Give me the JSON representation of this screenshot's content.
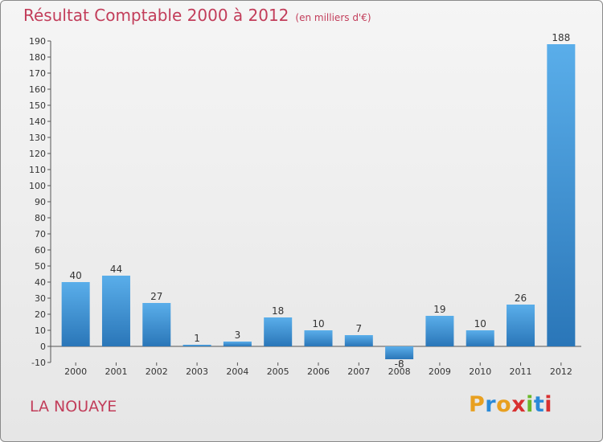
{
  "header": {
    "title": "Résultat Comptable 2000 à 2012",
    "subtitle": "(en milliers d'€)"
  },
  "footer": {
    "commune": "LA NOUAYE",
    "brand_letters": [
      "P",
      "r",
      "o",
      "x",
      "i",
      "t",
      "i"
    ]
  },
  "colors": {
    "title": "#c23d5a",
    "bar_light": "#5aaeea",
    "bar_dark": "#2a76b8",
    "brand": [
      "#e8a020",
      "#2a8ad8",
      "#e8a020",
      "#d83030",
      "#6ab82a",
      "#2a8ad8",
      "#d83030"
    ]
  },
  "chart_data": {
    "type": "bar",
    "title": "Résultat Comptable 2000 à 2012",
    "xlabel": "",
    "ylabel": "",
    "categories": [
      "2000",
      "2001",
      "2002",
      "2003",
      "2004",
      "2005",
      "2006",
      "2007",
      "2008",
      "2009",
      "2010",
      "2011",
      "2012"
    ],
    "values": [
      40,
      44,
      27,
      1,
      3,
      18,
      10,
      7,
      -8,
      19,
      10,
      26,
      188
    ],
    "ylim": [
      -10,
      190
    ],
    "yticks": [
      -10,
      0,
      10,
      20,
      30,
      40,
      50,
      60,
      70,
      80,
      90,
      100,
      110,
      120,
      130,
      140,
      150,
      160,
      170,
      180,
      190
    ],
    "grid": false,
    "legend": "none"
  }
}
